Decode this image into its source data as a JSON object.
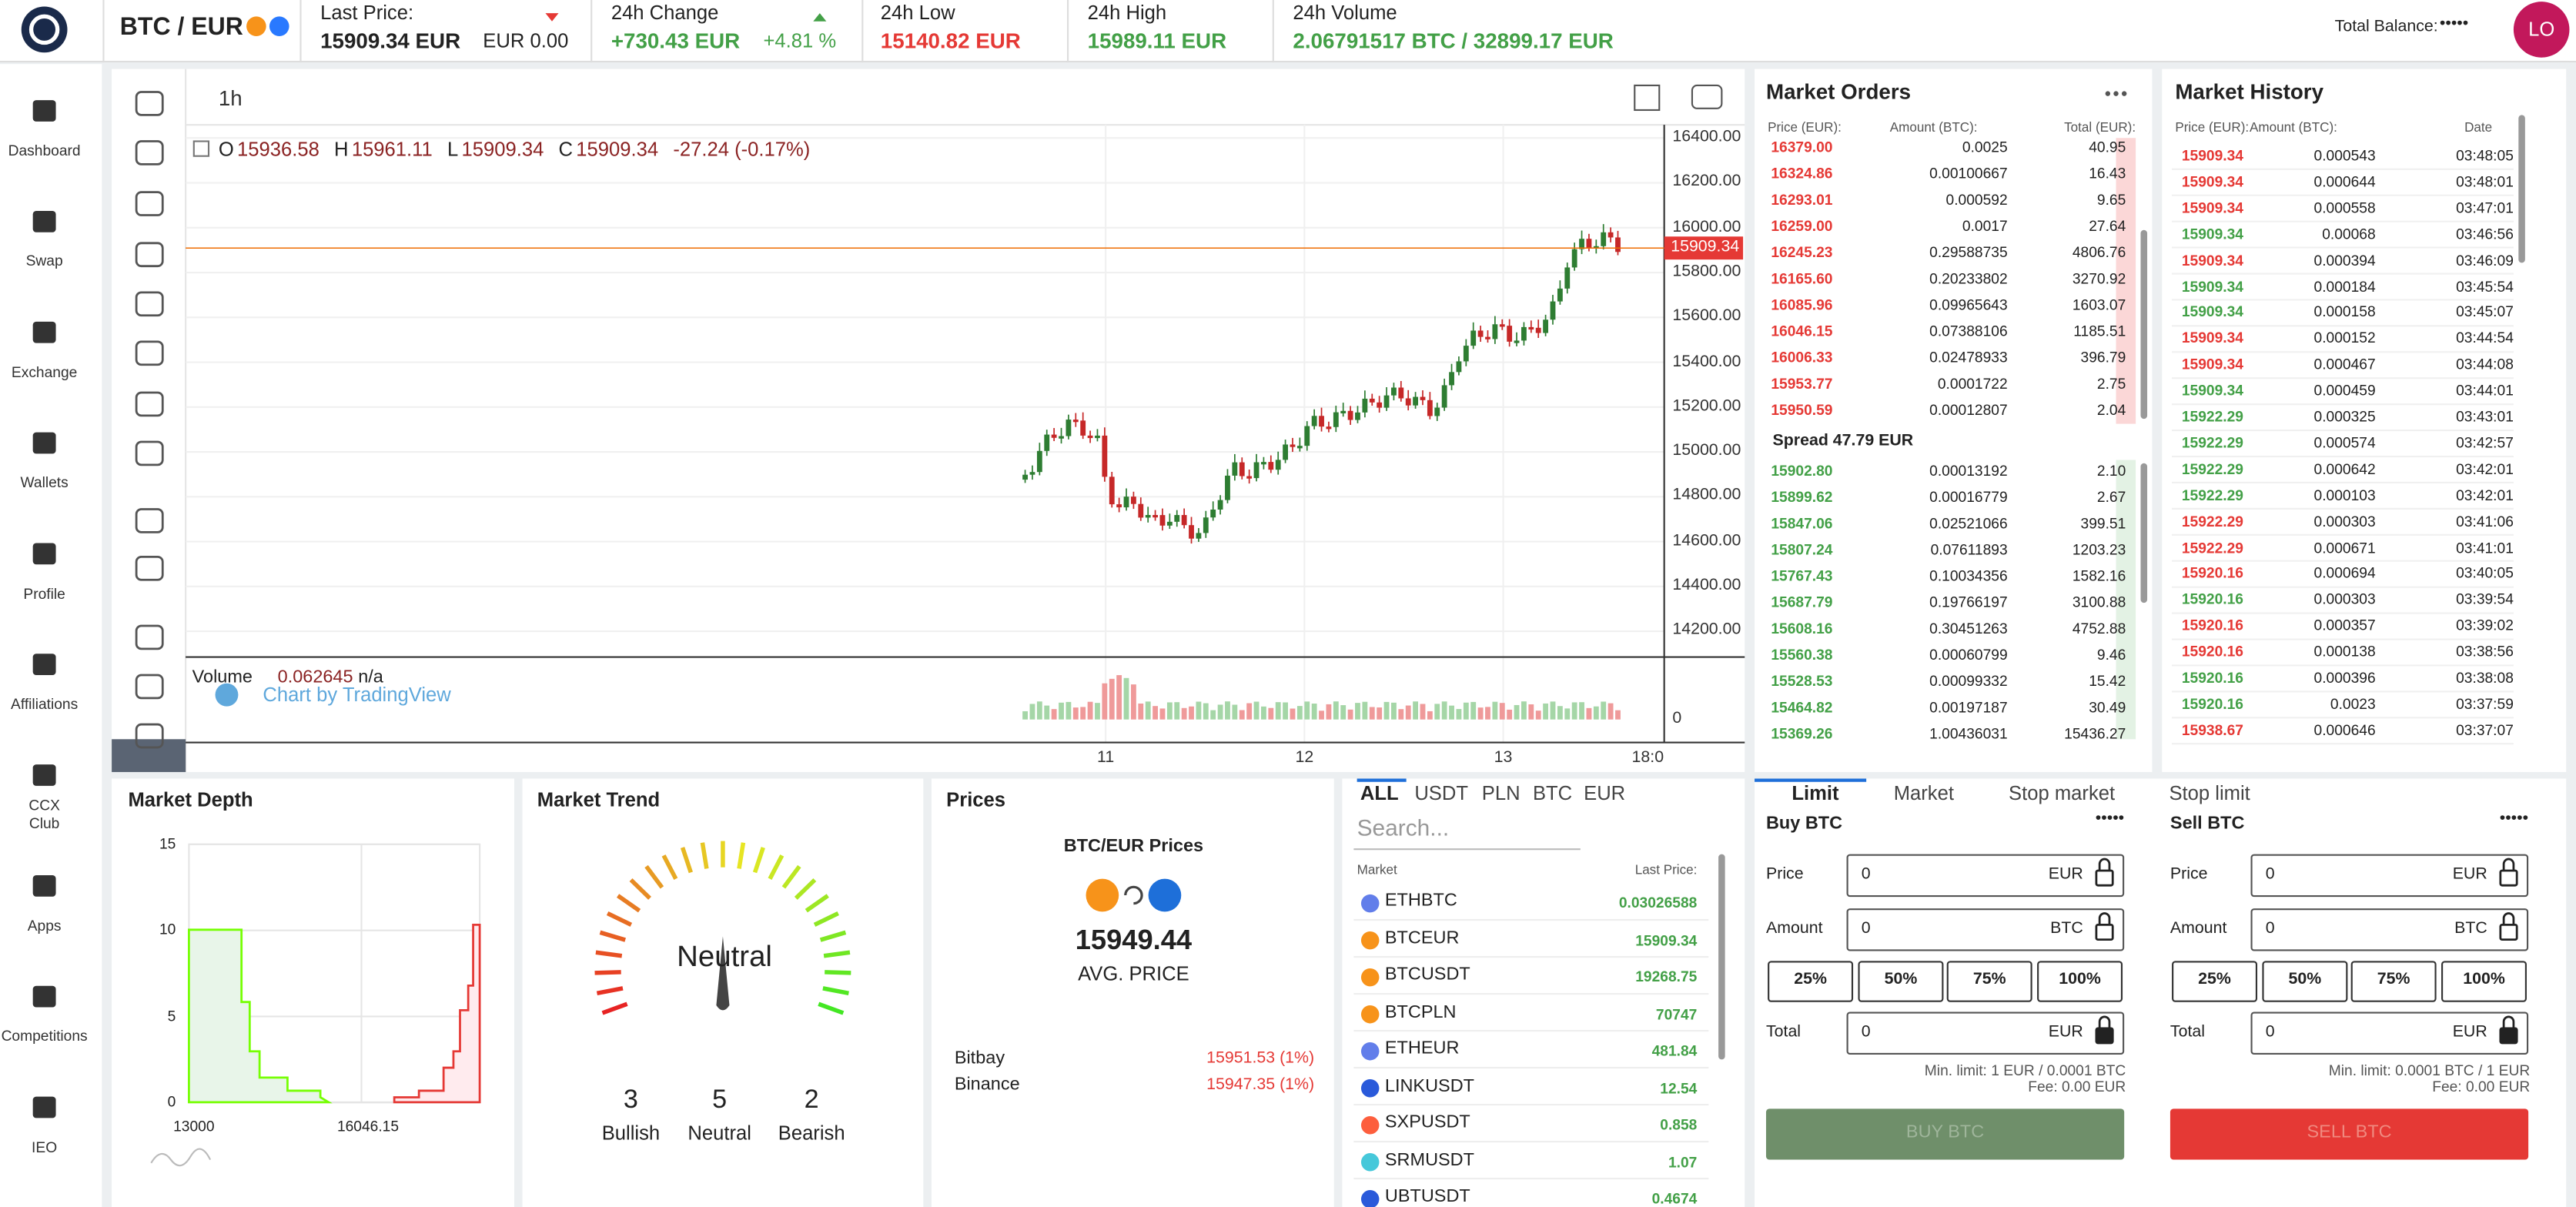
{
  "header": {
    "pair": "BTC / EUR",
    "last_price_label": "Last Price:",
    "last_price": "15909.34 EUR",
    "eur_change": "EUR 0.00",
    "change_label": "24h Change",
    "change": "+730.43 EUR",
    "change_pct": "+4.81 %",
    "low_label": "24h Low",
    "low": "15140.82 EUR",
    "high_label": "24h High",
    "high": "15989.11 EUR",
    "volume_label": "24h Volume",
    "volume": "2.06791517 BTC / 32899.17 EUR",
    "balance_label": "Total Balance:",
    "balance": "•••••",
    "avatar": "LO"
  },
  "sidebar": [
    "Dashboard",
    "Swap",
    "Exchange",
    "Wallets",
    "Profile",
    "Affiliations",
    "CCX Club",
    "Apps",
    "Competitions",
    "IEO"
  ],
  "chart": {
    "interval": "1h",
    "ohlc": [
      {
        "key": "O",
        "value": "15936.58"
      },
      {
        "key": "H",
        "value": "15961.11"
      },
      {
        "key": "L",
        "value": "15909.34"
      },
      {
        "key": "C",
        "value": "15909.34"
      }
    ],
    "change": "-27.24 (-0.17%)",
    "price_ticks": [
      "16400.00",
      "16200.00",
      "16000.00",
      "15800.00",
      "15600.00",
      "15400.00",
      "15200.00",
      "15000.00",
      "14800.00",
      "14600.00",
      "14400.00",
      "14200.00"
    ],
    "current_price": "15909.34",
    "volume_label": "Volume",
    "volume_value": "0.062645",
    "volume_ma": "n/a",
    "volume_tick": "0",
    "attribution": "Chart by TradingView",
    "time_ticks": [
      "11",
      "12",
      "13",
      "18:0"
    ]
  },
  "market_orders": {
    "title": "Market Orders",
    "headers": [
      "Price (EUR):",
      "Amount (BTC):",
      "Total (EUR):"
    ],
    "asks": [
      [
        "16379.00",
        "0.0025",
        "40.95"
      ],
      [
        "16324.86",
        "0.00100667",
        "16.43"
      ],
      [
        "16293.01",
        "0.000592",
        "9.65"
      ],
      [
        "16259.00",
        "0.0017",
        "27.64"
      ],
      [
        "16245.23",
        "0.29588735",
        "4806.76"
      ],
      [
        "16165.60",
        "0.20233802",
        "3270.92"
      ],
      [
        "16085.96",
        "0.09965643",
        "1603.07"
      ],
      [
        "16046.15",
        "0.07388106",
        "1185.51"
      ],
      [
        "16006.33",
        "0.02478933",
        "396.79"
      ],
      [
        "15953.77",
        "0.0001722",
        "2.75"
      ],
      [
        "15950.59",
        "0.00012807",
        "2.04"
      ]
    ],
    "spread": "Spread 47.79 EUR",
    "bids": [
      [
        "15902.80",
        "0.00013192",
        "2.10"
      ],
      [
        "15899.62",
        "0.00016779",
        "2.67"
      ],
      [
        "15847.06",
        "0.02521066",
        "399.51"
      ],
      [
        "15807.24",
        "0.07611893",
        "1203.23"
      ],
      [
        "15767.43",
        "0.10034356",
        "1582.16"
      ],
      [
        "15687.79",
        "0.19766197",
        "3100.88"
      ],
      [
        "15608.16",
        "0.30451263",
        "4752.88"
      ],
      [
        "15560.38",
        "0.00060799",
        "9.46"
      ],
      [
        "15528.53",
        "0.00099332",
        "15.42"
      ],
      [
        "15464.82",
        "0.00197187",
        "30.49"
      ],
      [
        "15369.26",
        "1.00436031",
        "15436.27"
      ]
    ]
  },
  "market_history": {
    "title": "Market History",
    "headers": [
      "Price (EUR):",
      "Amount (BTC):",
      "Date"
    ],
    "rows": [
      {
        "price": "15909.34",
        "amount": "0.000543",
        "time": "03:48:05",
        "color": "#e53935"
      },
      {
        "price": "15909.34",
        "amount": "0.000644",
        "time": "03:48:01",
        "color": "#e53935"
      },
      {
        "price": "15909.34",
        "amount": "0.000558",
        "time": "03:47:01",
        "color": "#e53935"
      },
      {
        "price": "15909.34",
        "amount": "0.00068",
        "time": "03:46:56",
        "color": "#43a047"
      },
      {
        "price": "15909.34",
        "amount": "0.000394",
        "time": "03:46:09",
        "color": "#e53935"
      },
      {
        "price": "15909.34",
        "amount": "0.000184",
        "time": "03:45:54",
        "color": "#43a047"
      },
      {
        "price": "15909.34",
        "amount": "0.000158",
        "time": "03:45:07",
        "color": "#43a047"
      },
      {
        "price": "15909.34",
        "amount": "0.000152",
        "time": "03:44:54",
        "color": "#e53935"
      },
      {
        "price": "15909.34",
        "amount": "0.000467",
        "time": "03:44:08",
        "color": "#e53935"
      },
      {
        "price": "15909.34",
        "amount": "0.000459",
        "time": "03:44:01",
        "color": "#43a047"
      },
      {
        "price": "15922.29",
        "amount": "0.000325",
        "time": "03:43:01",
        "color": "#43a047"
      },
      {
        "price": "15922.29",
        "amount": "0.000574",
        "time": "03:42:57",
        "color": "#43a047"
      },
      {
        "price": "15922.29",
        "amount": "0.000642",
        "time": "03:42:01",
        "color": "#43a047"
      },
      {
        "price": "15922.29",
        "amount": "0.000103",
        "time": "03:42:01",
        "color": "#43a047"
      },
      {
        "price": "15922.29",
        "amount": "0.000303",
        "time": "03:41:06",
        "color": "#e53935"
      },
      {
        "price": "15922.29",
        "amount": "0.000671",
        "time": "03:41:01",
        "color": "#e53935"
      },
      {
        "price": "15920.16",
        "amount": "0.000694",
        "time": "03:40:05",
        "color": "#e53935"
      },
      {
        "price": "15920.16",
        "amount": "0.000303",
        "time": "03:39:54",
        "color": "#43a047"
      },
      {
        "price": "15920.16",
        "amount": "0.000357",
        "time": "03:39:02",
        "color": "#e53935"
      },
      {
        "price": "15920.16",
        "amount": "0.000138",
        "time": "03:38:56",
        "color": "#e53935"
      },
      {
        "price": "15920.16",
        "amount": "0.000396",
        "time": "03:38:08",
        "color": "#43a047"
      },
      {
        "price": "15920.16",
        "amount": "0.0023",
        "time": "03:37:59",
        "color": "#43a047"
      },
      {
        "price": "15938.67",
        "amount": "0.000646",
        "time": "03:37:07",
        "color": "#e53935"
      }
    ]
  },
  "market_depth": {
    "title": "Market Depth",
    "yticks": [
      "15",
      "10",
      "5",
      "0"
    ],
    "xlabels": [
      "13000",
      "16046.15"
    ]
  },
  "market_trend": {
    "title": "Market Trend",
    "gauge_label": "Neutral",
    "counts": [
      {
        "value": "3",
        "label": "Bullish"
      },
      {
        "value": "5",
        "label": "Neutral"
      },
      {
        "value": "2",
        "label": "Bearish"
      }
    ]
  },
  "prices": {
    "title": "Prices",
    "subtitle": "BTC/EUR Prices",
    "average": "15949.44",
    "average_label": "AVG. PRICE",
    "sources": [
      {
        "name": "Bitbay",
        "value": "15951.53 (1%)"
      },
      {
        "name": "Binance",
        "value": "15947.35 (1%)"
      }
    ]
  },
  "markets": {
    "tabs": [
      "ALL",
      "USDT",
      "PLN",
      "BTC",
      "EUR"
    ],
    "search_placeholder": "Search...",
    "headers": [
      "Market",
      "Last Price:"
    ],
    "rows": [
      [
        "ETHBTC",
        "0.03026588"
      ],
      [
        "BTCEUR",
        "15909.34"
      ],
      [
        "BTCUSDT",
        "19268.75"
      ],
      [
        "BTCPLN",
        "70747"
      ],
      [
        "ETHEUR",
        "481.84"
      ],
      [
        "LINKUSDT",
        "12.54"
      ],
      [
        "SXPUSDT",
        "0.858"
      ],
      [
        "SRMUSDT",
        "1.07"
      ],
      [
        "UBTUSDT",
        "0.4674"
      ]
    ]
  },
  "order_forms": {
    "tabs": [
      "Limit",
      "Market",
      "Stop market",
      "Stop limit"
    ],
    "buy": {
      "title": "Buy BTC",
      "dots": "•••••",
      "price_label": "Price",
      "price_value": "0",
      "price_unit": "EUR",
      "amount_label": "Amount",
      "amount_value": "0",
      "amount_unit": "BTC",
      "percentages": [
        "25%",
        "50%",
        "75%",
        "100%"
      ],
      "total_label": "Total",
      "total_value": "0",
      "total_unit": "EUR",
      "min_limit": "Min. limit: 1 EUR / 0.0001 BTC",
      "fee": "Fee: 0.00 EUR",
      "button": "BUY BTC"
    },
    "sell": {
      "title": "Sell BTC",
      "dots": "•••••",
      "price_label": "Price",
      "price_value": "0",
      "price_unit": "EUR",
      "amount_label": "Amount",
      "amount_value": "0",
      "amount_unit": "BTC",
      "percentages": [
        "25%",
        "50%",
        "75%",
        "100%"
      ],
      "total_label": "Total",
      "total_value": "0",
      "total_unit": "EUR",
      "min_limit": "Min. limit: 0.0001 BTC / 1 EUR",
      "fee": "Fee: 0.00 EUR",
      "button": "SELL BTC"
    }
  }
}
